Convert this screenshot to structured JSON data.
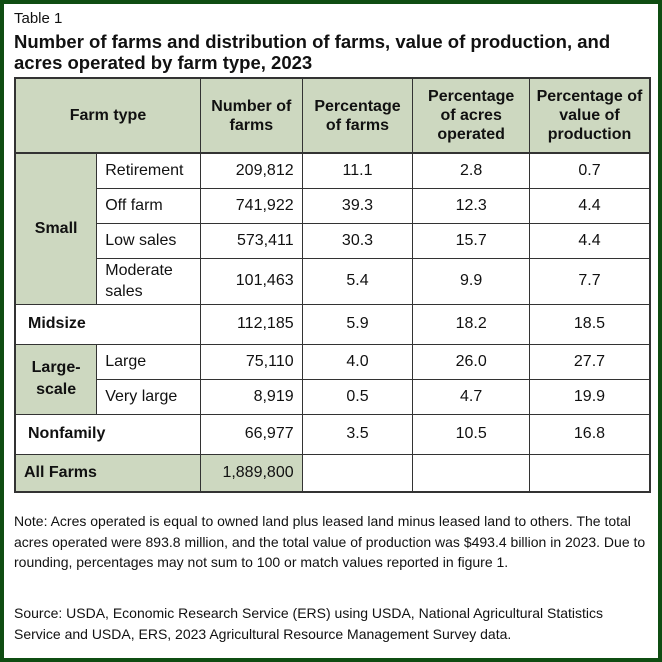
{
  "table_label": "Table 1",
  "title": "Number of farms and distribution of farms, value of production, and acres operated by farm type, 2023",
  "headers": {
    "farm_type": "Farm type",
    "number": "Number of farms",
    "pct_farms": "Percentage of farms",
    "pct_acres": "Percentage of acres operated",
    "pct_value": "Percentage of value of production"
  },
  "groups": {
    "small": "Small",
    "midsize": "Midsize",
    "large_scale": "Large-scale",
    "nonfamily": "Nonfamily",
    "all_farms": "All Farms"
  },
  "rows": {
    "retirement": {
      "label": "Retirement",
      "number": "209,812",
      "pct_farms": "11.1",
      "pct_acres": "2.8",
      "pct_value": "0.7"
    },
    "off_farm": {
      "label": "Off farm",
      "number": "741,922",
      "pct_farms": "39.3",
      "pct_acres": "12.3",
      "pct_value": "4.4"
    },
    "low_sales": {
      "label": "Low sales",
      "number": "573,411",
      "pct_farms": "30.3",
      "pct_acres": "15.7",
      "pct_value": "4.4"
    },
    "moderate_sales": {
      "label": "Moderate sales",
      "number": "101,463",
      "pct_farms": "5.4",
      "pct_acres": "9.9",
      "pct_value": "7.7"
    },
    "midsize": {
      "number": "112,185",
      "pct_farms": "5.9",
      "pct_acres": "18.2",
      "pct_value": "18.5"
    },
    "large": {
      "label": "Large",
      "number": "75,110",
      "pct_farms": "4.0",
      "pct_acres": "26.0",
      "pct_value": "27.7"
    },
    "very_large": {
      "label": "Very large",
      "number": "8,919",
      "pct_farms": "0.5",
      "pct_acres": "4.7",
      "pct_value": "19.9"
    },
    "nonfamily": {
      "number": "66,977",
      "pct_farms": "3.5",
      "pct_acres": "10.5",
      "pct_value": "16.8"
    },
    "all_farms": {
      "number": "1,889,800"
    }
  },
  "note": "Note: Acres operated is equal to owned land plus leased land minus leased land to others. The total acres operated were 893.8 million, and the total value of production was $493.4 billion in 2023. Due to rounding, percentages may not sum to 100 or match values reported in figure 1.",
  "source": "Source: USDA, Economic Research Service (ERS) using USDA, National Agricultural Statistics Service and USDA, ERS, 2023 Agricultural Resource Management Survey data.",
  "colors": {
    "border": "#0f4d12",
    "header_bg": "#cdd8c0"
  }
}
